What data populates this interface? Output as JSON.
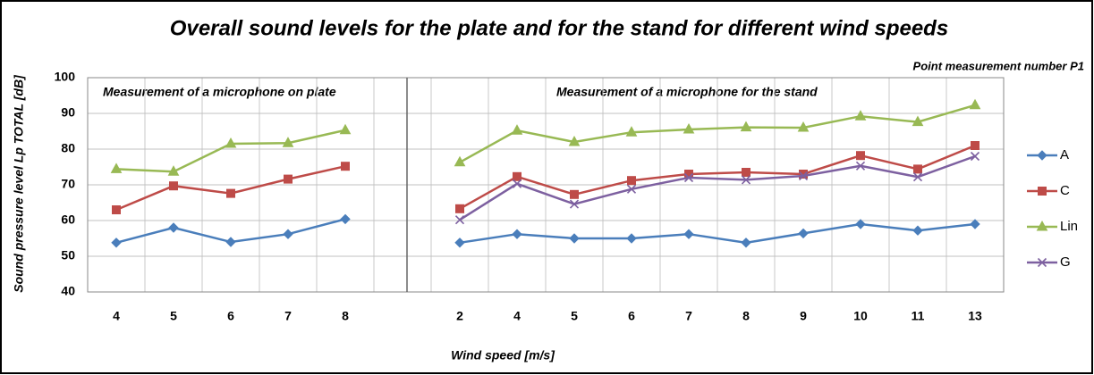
{
  "chart_data": {
    "type": "line",
    "title": "Overall sound levels for the plate and for the stand for different wind speeds",
    "subtitle": "Point measurement number P1",
    "annotations": [
      "Measurement of a microphone on plate",
      "Measurement of a microphone for the stand"
    ],
    "xlabel": "Wind speed [m/s]",
    "ylabel": "Sound pressure level Lp TOTAL [dB]",
    "categories": [
      "4",
      "5",
      "6",
      "7",
      "8",
      null,
      "2",
      "4",
      "5",
      "6",
      "7",
      "8",
      "9",
      "10",
      "11",
      "13"
    ],
    "series": [
      {
        "name": "A",
        "color": "#4a7ebb",
        "marker": "diamond",
        "values": [
          53.8,
          58,
          54,
          56.2,
          60.4,
          null,
          53.8,
          56.2,
          55,
          55,
          56.2,
          53.8,
          56.4,
          59,
          57.2,
          59
        ]
      },
      {
        "name": "C",
        "color": "#be4b48",
        "marker": "square",
        "values": [
          63,
          69.7,
          67.6,
          71.6,
          75.2,
          null,
          63.3,
          72.3,
          67.3,
          71.2,
          73,
          73.5,
          73,
          78.2,
          74.4,
          81
        ]
      },
      {
        "name": "Lin",
        "color": "#98b954",
        "marker": "triangle",
        "values": [
          74.4,
          73.7,
          81.5,
          81.7,
          85.3,
          null,
          76.3,
          85.2,
          82,
          84.7,
          85.5,
          86.1,
          86,
          89.2,
          87.6,
          92.3
        ]
      },
      {
        "name": "G",
        "color": "#7d60a0",
        "marker": "x",
        "values": [
          null,
          null,
          null,
          null,
          null,
          null,
          60.2,
          70.3,
          64.6,
          68.8,
          72,
          71.4,
          72.5,
          75.3,
          72.2,
          78
        ]
      }
    ],
    "ylim": [
      40,
      100
    ],
    "yticks": [
      40,
      50,
      60,
      70,
      80,
      90,
      100
    ],
    "grid": true,
    "legend": "right"
  }
}
